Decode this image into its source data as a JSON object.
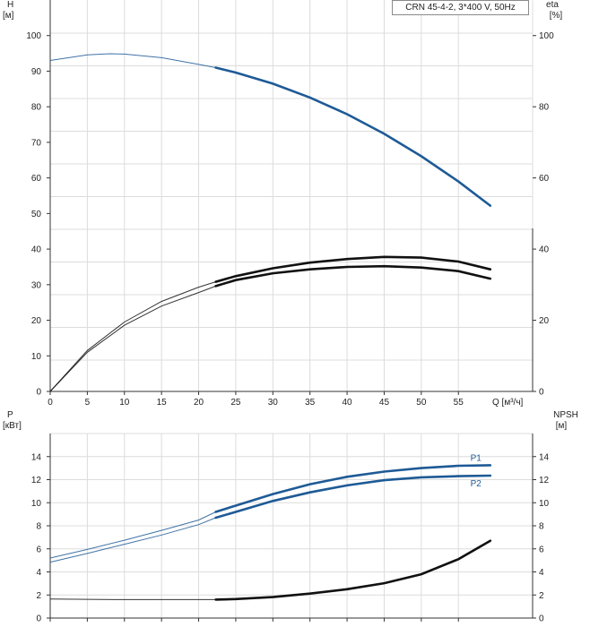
{
  "chart_data": [
    {
      "type": "line",
      "title": "CRN 45-4-2, 3*400 V, 50Hz",
      "x_axis": {
        "label": "Q [м³/ч]",
        "min": 0,
        "max": 65,
        "ticks": [
          0,
          5,
          10,
          15,
          20,
          25,
          30,
          35,
          40,
          45,
          50,
          55
        ]
      },
      "y_left": {
        "label_line1": "H",
        "label_line2": "[м]",
        "min": 0,
        "max": 110,
        "ticks": [
          0,
          10,
          20,
          30,
          40,
          50,
          60,
          70,
          80,
          90,
          100
        ]
      },
      "y_right": {
        "label_line1": "eta",
        "label_line2": "[%]",
        "min": 0,
        "max": 110,
        "ticks": [
          0,
          20,
          40,
          60,
          80,
          100
        ]
      },
      "grid": true,
      "series": [
        {
          "color": "#1e5a96",
          "thick_from": 22.3,
          "x": [
            0,
            5,
            8,
            10,
            15,
            20,
            22.3,
            25,
            30,
            35,
            40,
            45,
            50,
            55,
            59.3
          ],
          "y": [
            93,
            94.6,
            94.9,
            94.8,
            93.8,
            91.9,
            91.0,
            89.6,
            86.5,
            82.6,
            77.9,
            72.4,
            66.1,
            59.0,
            52.2
          ]
        },
        {
          "color": "#111111",
          "thick_from": 22.3,
          "x": [
            0,
            5,
            10,
            15,
            20,
            22.3,
            25,
            30,
            35,
            40,
            45,
            50,
            55,
            59.3
          ],
          "y": [
            0,
            11.5,
            19.5,
            25.3,
            29.3,
            30.8,
            32.4,
            34.6,
            36.2,
            37.2,
            37.8,
            37.6,
            36.5,
            34.3
          ]
        },
        {
          "color": "#111111",
          "thick_from": 22.3,
          "x": [
            0,
            5,
            10,
            15,
            20,
            22.3,
            25,
            30,
            35,
            40,
            45,
            50,
            55,
            59.3
          ],
          "y": [
            0,
            11.0,
            18.6,
            24.0,
            27.8,
            29.6,
            31.3,
            33.2,
            34.3,
            35.0,
            35.2,
            34.8,
            33.8,
            31.7
          ]
        }
      ]
    },
    {
      "type": "line",
      "x_axis": {
        "min": 0,
        "max": 65,
        "ticks": [
          0,
          5,
          10,
          15,
          20,
          25,
          30,
          35,
          40,
          45,
          50,
          55
        ]
      },
      "y_left": {
        "label_line1": "P",
        "label_line2": "[кВт]",
        "min": 0,
        "max": 16,
        "ticks": [
          0,
          2,
          4,
          6,
          8,
          10,
          12,
          14
        ]
      },
      "y_right": {
        "label_line1": "NPSH",
        "label_line2": "[м]",
        "min": 0,
        "max": 16,
        "ticks": [
          0,
          2,
          4,
          6,
          8,
          10,
          12,
          14
        ]
      },
      "grid": true,
      "series": [
        {
          "name": "P1",
          "color": "#1e5a96",
          "thick_from": 22.3,
          "x": [
            0,
            5,
            10,
            15,
            20,
            22.3,
            25,
            30,
            35,
            40,
            45,
            50,
            55,
            59.3
          ],
          "y": [
            5.2,
            5.95,
            6.75,
            7.6,
            8.5,
            9.2,
            9.75,
            10.75,
            11.6,
            12.25,
            12.7,
            13.0,
            13.2,
            13.25
          ]
        },
        {
          "name": "P2",
          "color": "#1e5a96",
          "thick_from": 22.3,
          "x": [
            0,
            5,
            10,
            15,
            20,
            22.3,
            25,
            30,
            35,
            40,
            45,
            50,
            55,
            59.3
          ],
          "y": [
            4.85,
            5.6,
            6.4,
            7.2,
            8.1,
            8.7,
            9.2,
            10.15,
            10.9,
            11.5,
            11.95,
            12.2,
            12.3,
            12.35
          ]
        },
        {
          "color": "#111111",
          "thick_from": 22.3,
          "x": [
            0,
            5,
            10,
            15,
            20,
            22.3,
            25,
            30,
            35,
            40,
            45,
            50,
            55,
            59.3
          ],
          "y": [
            1.65,
            1.62,
            1.6,
            1.6,
            1.6,
            1.6,
            1.65,
            1.82,
            2.12,
            2.5,
            3.02,
            3.8,
            5.1,
            6.7
          ]
        }
      ]
    }
  ]
}
